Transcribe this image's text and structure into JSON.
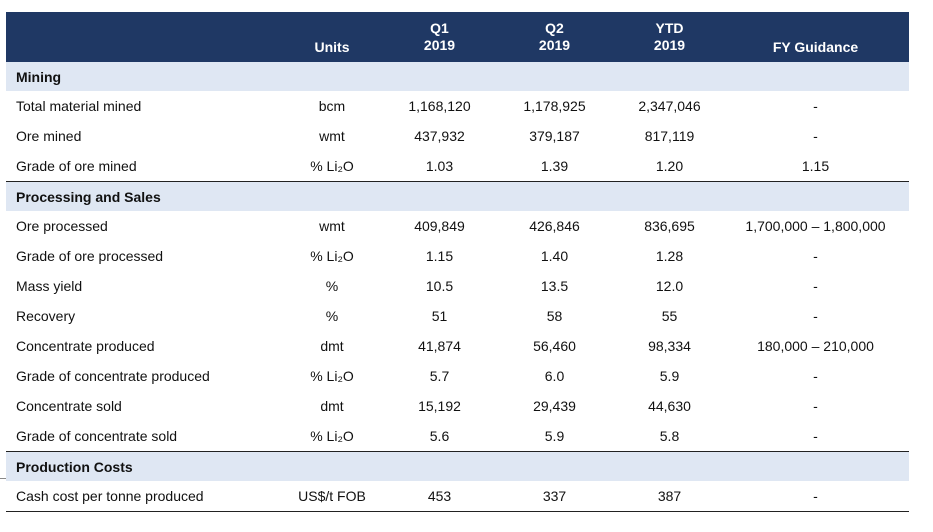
{
  "header": {
    "label": "",
    "units": "Units",
    "q1": [
      "Q1",
      "2019"
    ],
    "q2": [
      "Q2",
      "2019"
    ],
    "ytd": [
      "YTD",
      "2019"
    ],
    "fy": "FY Guidance"
  },
  "sections": [
    {
      "title": "Mining",
      "rows": [
        {
          "name": "Total material mined",
          "units": "bcm",
          "q1": "1,168,120",
          "q2": "1,178,925",
          "ytd": "2,347,046",
          "fy": "-"
        },
        {
          "name": "Ore mined",
          "units": "wmt",
          "q1": "437,932",
          "q2": "379,187",
          "ytd": "817,119",
          "fy": "-"
        },
        {
          "name": "Grade of ore mined",
          "units": "% Li₂O",
          "q1": "1.03",
          "q2": "1.39",
          "ytd": "1.20",
          "fy": "1.15"
        }
      ]
    },
    {
      "title": "Processing and Sales",
      "rows": [
        {
          "name": "Ore processed",
          "units": "wmt",
          "q1": "409,849",
          "q2": "426,846",
          "ytd": "836,695",
          "fy": "1,700,000 – 1,800,000"
        },
        {
          "name": "Grade of ore processed",
          "units": "% Li₂O",
          "q1": "1.15",
          "q2": "1.40",
          "ytd": "1.28",
          "fy": "-"
        },
        {
          "name": "Mass yield",
          "units": "%",
          "q1": "10.5",
          "q2": "13.5",
          "ytd": "12.0",
          "fy": "-"
        },
        {
          "name": "Recovery",
          "units": "%",
          "q1": "51",
          "q2": "58",
          "ytd": "55",
          "fy": "-"
        },
        {
          "name": "Concentrate produced",
          "units": "dmt",
          "q1": "41,874",
          "q2": "56,460",
          "ytd": "98,334",
          "fy": "180,000 – 210,000"
        },
        {
          "name": "Grade of concentrate produced",
          "units": "% Li₂O",
          "q1": "5.7",
          "q2": "6.0",
          "ytd": "5.9",
          "fy": "-"
        },
        {
          "name": "Concentrate sold",
          "units": "dmt",
          "q1": "15,192",
          "q2": "29,439",
          "ytd": "44,630",
          "fy": "-"
        },
        {
          "name": "Grade of concentrate sold",
          "units": "% Li₂O",
          "q1": "5.6",
          "q2": "5.9",
          "ytd": "5.8",
          "fy": "-"
        }
      ]
    },
    {
      "title": "Production Costs",
      "rows": [
        {
          "name": "Cash cost per tonne produced",
          "units": "US$/t FOB",
          "q1": "453",
          "q2": "337",
          "ytd": "387",
          "fy": "-"
        }
      ]
    }
  ]
}
